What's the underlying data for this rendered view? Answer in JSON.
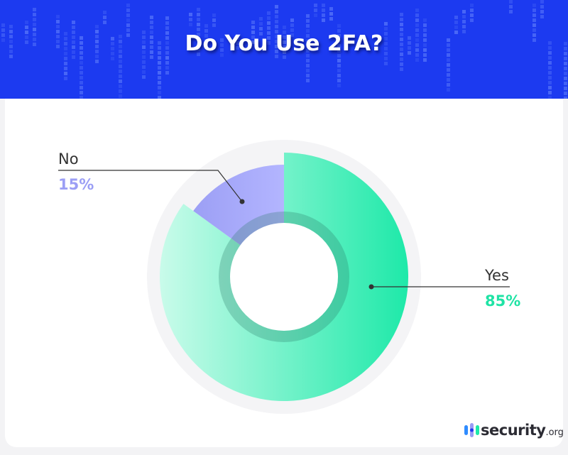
{
  "title": "Do You Use 2FA?",
  "chart_data": {
    "type": "pie",
    "title": "Do You Use 2FA?",
    "categories": [
      "Yes",
      "No"
    ],
    "values": [
      85,
      15
    ],
    "value_labels": [
      "85%",
      "15%"
    ],
    "colors": {
      "Yes": [
        "#c9fbea",
        "#1ee9a9"
      ],
      "No": [
        "#9c9ff5",
        "#b3b5ff"
      ]
    },
    "donut": true
  },
  "labels": {
    "yes": {
      "name": "Yes",
      "pct": "85%",
      "color": "#1fe3a5"
    },
    "no": {
      "name": "No",
      "pct": "15%",
      "color": "#9b9ef5"
    }
  },
  "logo": {
    "word": "security",
    "tld": ".org"
  }
}
